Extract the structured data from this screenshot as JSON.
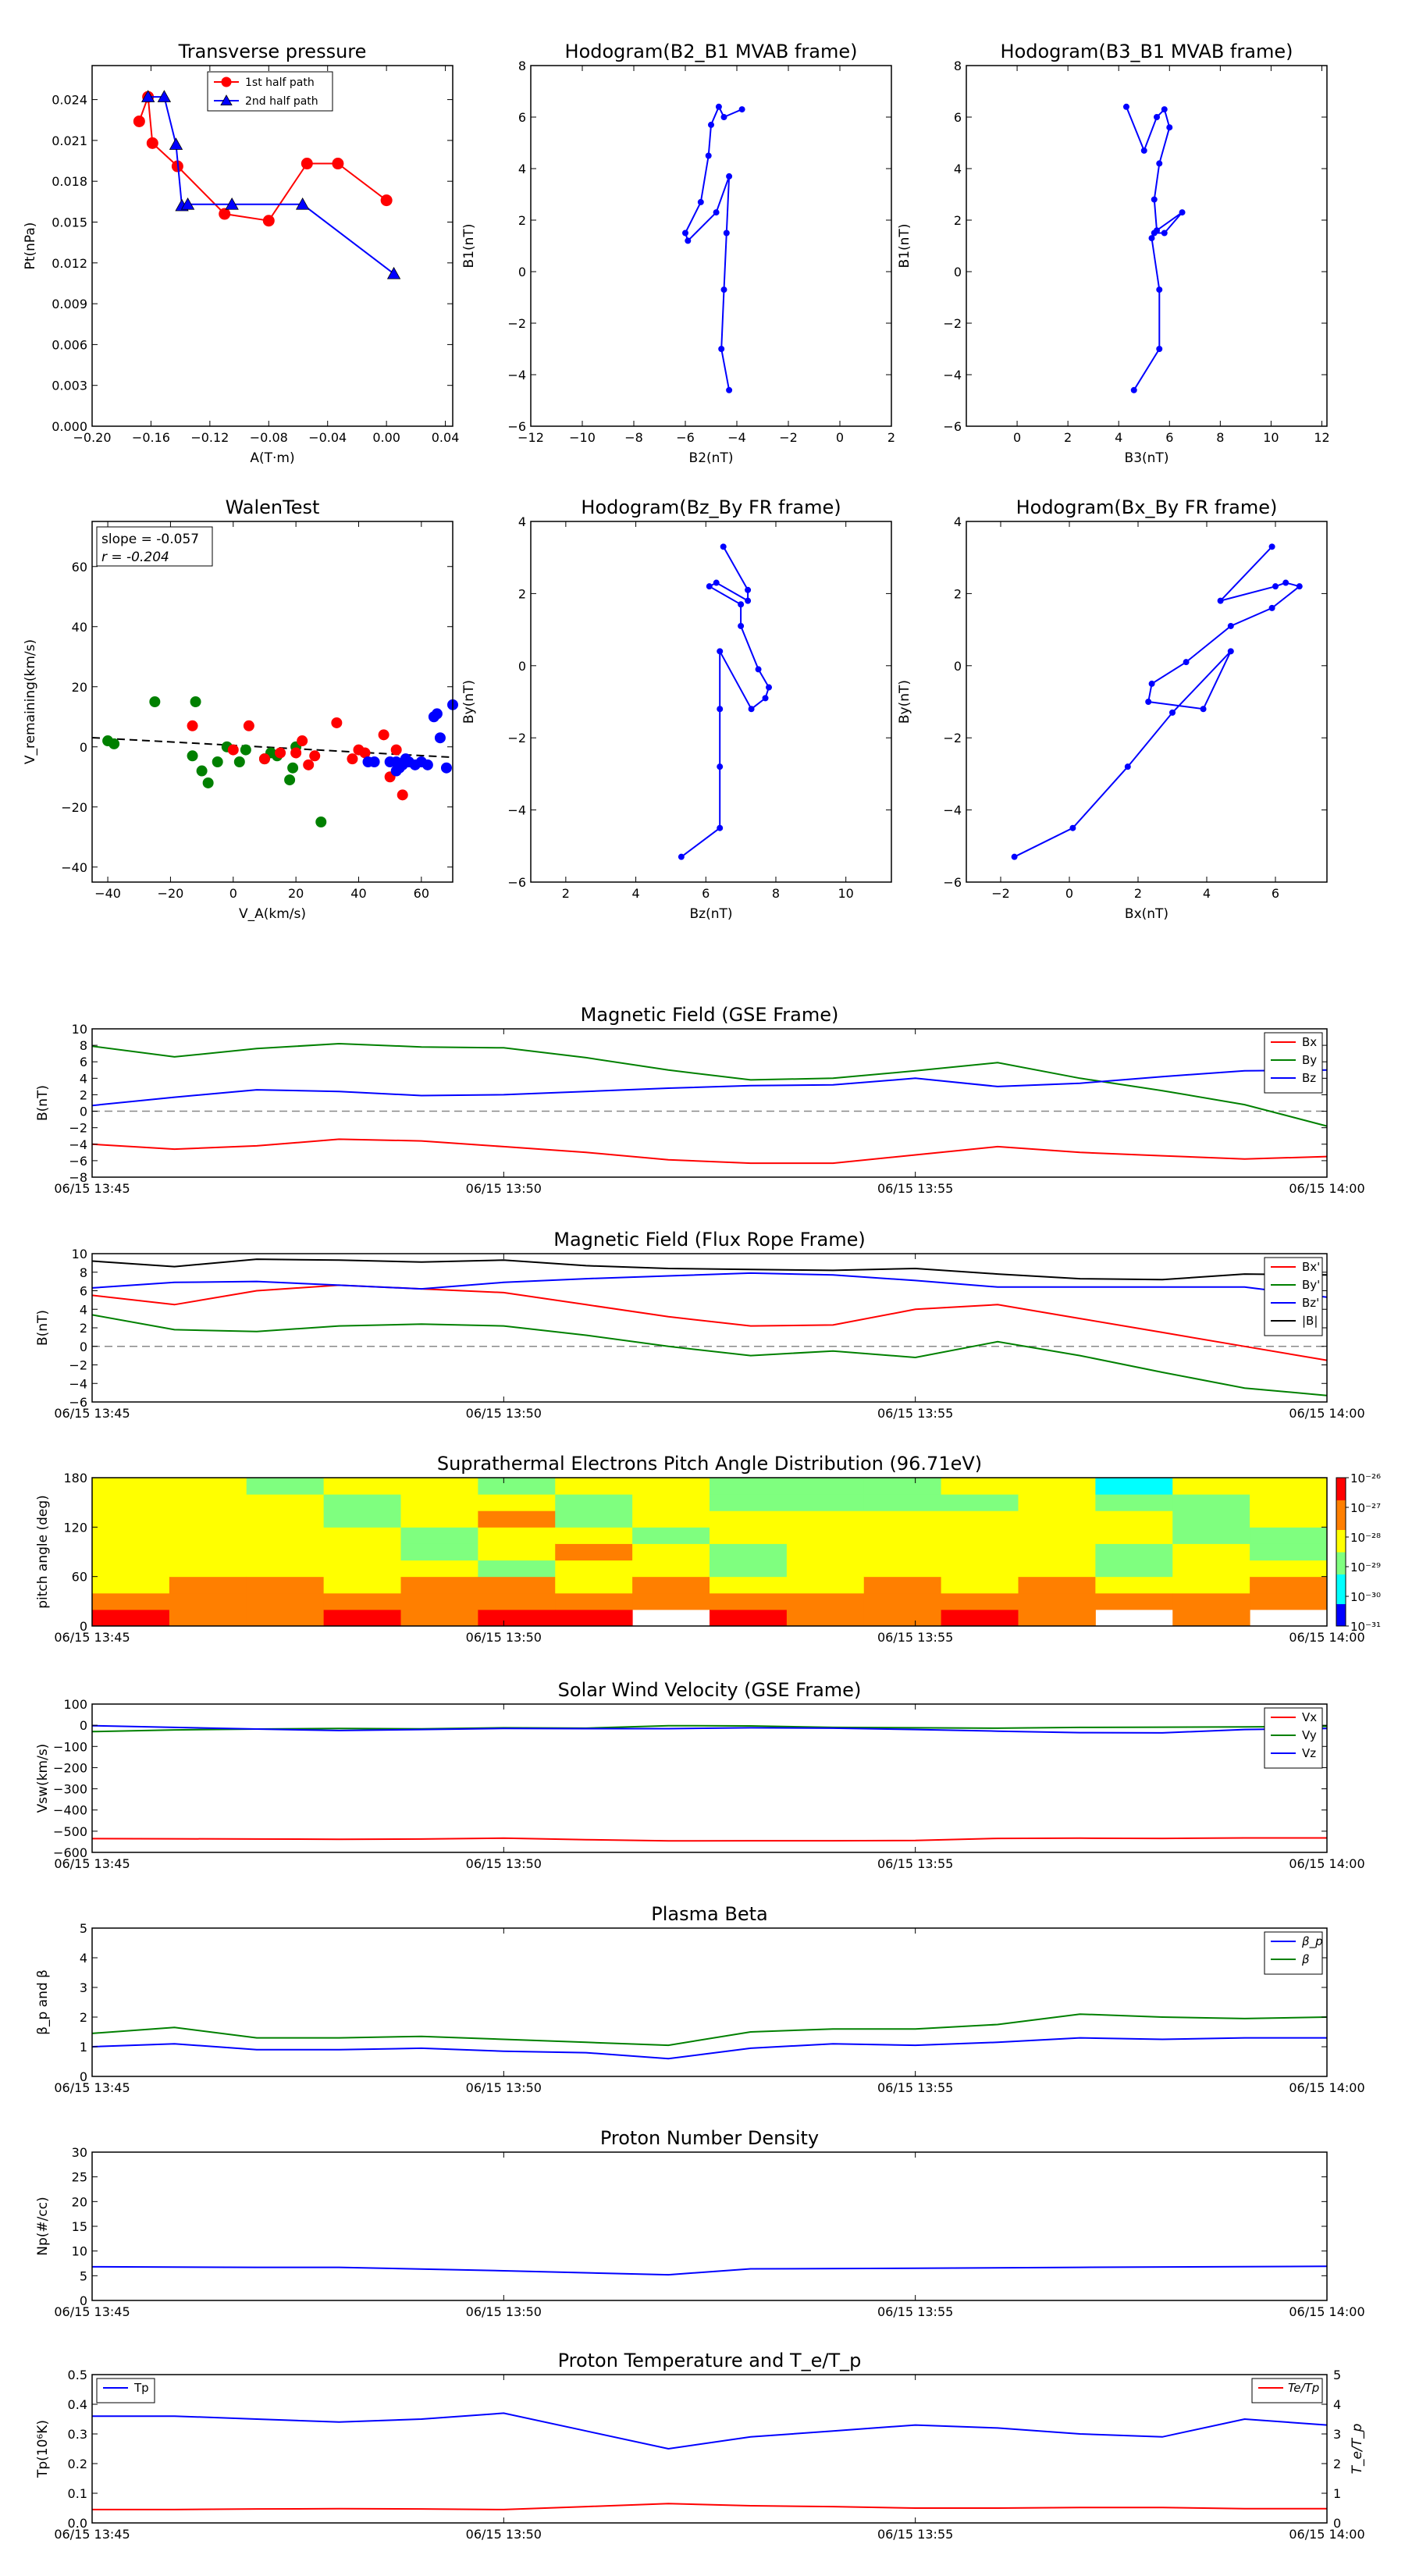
{
  "panels": {
    "pt": {
      "title": "Transverse pressure",
      "xlabel": "A(T·m)",
      "ylabel": "Pt(nPa)",
      "xticks": [
        "−0.20",
        "−0.16",
        "−0.12",
        "−0.08",
        "−0.04",
        "0.00",
        "0.04"
      ],
      "yticks": [
        "0.000",
        "0.003",
        "0.006",
        "0.009",
        "0.012",
        "0.015",
        "0.018",
        "0.021",
        "0.024"
      ],
      "legend": [
        "1st half path",
        "2nd half path"
      ]
    },
    "h1": {
      "title": "Hodogram(B2_B1 MVAB frame)",
      "xlabel": "B2(nT)",
      "ylabel": "B1(nT)",
      "xticks": [
        "−12",
        "−10",
        "−8",
        "−6",
        "−4",
        "−2",
        "0",
        "2"
      ],
      "yticks": [
        "−6",
        "−4",
        "−2",
        "0",
        "2",
        "4",
        "6",
        "8"
      ]
    },
    "h2": {
      "title": "Hodogram(B3_B1 MVAB frame)",
      "xlabel": "B3(nT)",
      "ylabel": "B1(nT)",
      "xticks": [
        "0",
        "2",
        "4",
        "6",
        "8",
        "10",
        "12"
      ],
      "yticks": [
        "−6",
        "−4",
        "−2",
        "0",
        "2",
        "4",
        "6",
        "8"
      ]
    },
    "walen": {
      "title": "WalenTest",
      "xlabel": "V_A(km/s)",
      "ylabel": "V_remaining(km/s)",
      "xticks": [
        "−40",
        "−20",
        "0",
        "20",
        "40",
        "60"
      ],
      "yticks": [
        "−40",
        "−20",
        "0",
        "20",
        "40",
        "60"
      ],
      "slope": "slope = -0.057",
      "r": "r = -0.204"
    },
    "h3": {
      "title": "Hodogram(Bz_By FR frame)",
      "xlabel": "Bz(nT)",
      "ylabel": "By(nT)",
      "xticks": [
        "2",
        "4",
        "6",
        "8",
        "10"
      ],
      "yticks": [
        "−6",
        "−4",
        "−2",
        "0",
        "2",
        "4"
      ]
    },
    "h4": {
      "title": "Hodogram(Bx_By FR frame)",
      "xlabel": "Bx(nT)",
      "ylabel": "By(nT)",
      "xticks": [
        "−2",
        "0",
        "2",
        "4",
        "6"
      ],
      "yticks": [
        "−6",
        "−4",
        "−2",
        "0",
        "2",
        "4"
      ]
    },
    "time_ticks": [
      "06/15 13:45",
      "06/15 13:50",
      "06/15 13:55",
      "06/15 14:00"
    ],
    "mag_gse": {
      "title": "Magnetic Field (GSE Frame)",
      "ylabel": "B(nT)",
      "yticks": [
        "−8",
        "−6",
        "−4",
        "−2",
        "0",
        "2",
        "4",
        "6",
        "8",
        "10"
      ],
      "legend": [
        "Bx",
        "By",
        "Bz"
      ]
    },
    "mag_fr": {
      "title": "Magnetic Field (Flux Rope Frame)",
      "ylabel": "B(nT)",
      "yticks": [
        "−6",
        "−4",
        "−2",
        "0",
        "2",
        "4",
        "6",
        "8",
        "10"
      ],
      "legend": [
        "Bx'",
        "By'",
        "Bz'",
        "|B|"
      ]
    },
    "pad": {
      "title": "Suprathermal Electrons Pitch Angle Distribution (96.71eV)",
      "ylabel": "pitch angle (deg)",
      "yticks": [
        "0",
        "60",
        "120",
        "180"
      ],
      "cbar": [
        "10⁻³¹",
        "10⁻³⁰",
        "10⁻²⁹",
        "10⁻²⁸",
        "10⁻²⁷",
        "10⁻²⁶"
      ]
    },
    "vsw": {
      "title": "Solar Wind Velocity (GSE Frame)",
      "ylabel": "Vsw(km/s)",
      "yticks": [
        "−600",
        "−500",
        "−400",
        "−300",
        "−200",
        "−100",
        "0",
        "100"
      ],
      "legend": [
        "Vx",
        "Vy",
        "Vz"
      ]
    },
    "beta": {
      "title": "Plasma Beta",
      "ylabel": "β_p and β",
      "yticks": [
        "0",
        "1",
        "2",
        "3",
        "4",
        "5"
      ],
      "legend": [
        "β_p",
        "β"
      ]
    },
    "np": {
      "title": "Proton Number Density",
      "ylabel": "Np(#/cc)",
      "yticks": [
        "0",
        "5",
        "10",
        "15",
        "20",
        "25",
        "30"
      ]
    },
    "tp": {
      "title": "Proton Temperature and T_e/T_p",
      "ylabel": "Tp(10⁶K)",
      "ylabel_right": "T_e/T_p",
      "yticks": [
        "0.0",
        "0.1",
        "0.2",
        "0.3",
        "0.4",
        "0.5"
      ],
      "yticks_right": [
        "0",
        "1",
        "2",
        "3",
        "4",
        "5"
      ],
      "legend": [
        "Tp"
      ],
      "legend_right": [
        "Te/Tp"
      ]
    }
  },
  "colors": {
    "red": "#ff0000",
    "green": "#008000",
    "blue": "#0000ff",
    "black": "#000000",
    "gray": "#888888"
  },
  "chart_data": [
    {
      "type": "line",
      "title": "Transverse pressure",
      "xlabel": "A(T·m)",
      "ylabel": "Pt(nPa)",
      "xlim": [
        -0.2,
        0.045
      ],
      "ylim": [
        0,
        0.0265
      ],
      "series": [
        {
          "name": "1st half path",
          "x": [
            -0.168,
            -0.162,
            -0.159,
            -0.142,
            -0.11,
            -0.08,
            -0.054,
            -0.033,
            0.0
          ],
          "y": [
            0.0224,
            0.0242,
            0.0208,
            0.0191,
            0.0156,
            0.0151,
            0.0193,
            0.0193,
            0.0166
          ]
        },
        {
          "name": "2nd half path",
          "x": [
            -0.162,
            -0.151,
            -0.143,
            -0.139,
            -0.135,
            -0.105,
            -0.057,
            0.005
          ],
          "y": [
            0.0242,
            0.0242,
            0.0207,
            0.0162,
            0.0163,
            0.0163,
            0.0163,
            0.0112
          ]
        }
      ]
    },
    {
      "type": "line",
      "title": "Hodogram(B2_B1 MVAB frame)",
      "xlabel": "B2(nT)",
      "ylabel": "B1(nT)",
      "xlim": [
        -12,
        2
      ],
      "ylim": [
        -6,
        8
      ],
      "x": [
        -3.8,
        -4.5,
        -4.7,
        -5.0,
        -5.1,
        -5.4,
        -6.0,
        -5.9,
        -4.8,
        -4.3,
        -4.4,
        -4.5,
        -4.6,
        -4.3
      ],
      "y": [
        6.3,
        6.0,
        6.4,
        5.7,
        4.5,
        2.7,
        1.5,
        1.2,
        2.3,
        3.7,
        1.5,
        -0.7,
        -3.0,
        -4.6
      ]
    },
    {
      "type": "line",
      "title": "Hodogram(B3_B1 MVAB frame)",
      "xlabel": "B3(nT)",
      "ylabel": "B1(nT)",
      "xlim": [
        -2,
        12.2
      ],
      "ylim": [
        -6,
        8
      ],
      "x": [
        4.3,
        5.0,
        5.5,
        5.8,
        6.0,
        5.6,
        5.4,
        5.5,
        6.5,
        5.8,
        5.4,
        5.3,
        5.6,
        5.6,
        4.6
      ],
      "y": [
        6.4,
        4.7,
        6.0,
        6.3,
        5.6,
        4.2,
        2.8,
        1.6,
        2.3,
        1.5,
        1.5,
        1.3,
        -0.7,
        -3.0,
        -4.6
      ]
    },
    {
      "type": "scatter",
      "title": "WalenTest",
      "xlabel": "V_A(km/s)",
      "ylabel": "V_remaining(km/s)",
      "xlim": [
        -45,
        70
      ],
      "ylim": [
        -45,
        75
      ],
      "fit": {
        "slope": -0.057,
        "intercept": 0.5,
        "r": -0.204
      },
      "series": [
        {
          "color": "green",
          "x": [
            -40,
            -38,
            -25,
            -13,
            -12,
            -10,
            -8,
            -5,
            -2,
            2,
            4,
            10,
            12,
            14,
            18,
            19,
            20,
            28
          ],
          "y": [
            2,
            1,
            15,
            -3,
            15,
            -8,
            -12,
            -5,
            0,
            -5,
            -1,
            -4,
            -2,
            -3,
            -11,
            -7,
            0,
            -25
          ]
        },
        {
          "color": "red",
          "x": [
            -13,
            0,
            5,
            10,
            15,
            20,
            22,
            24,
            26,
            33,
            38,
            40,
            42,
            48,
            50,
            52,
            54
          ],
          "y": [
            7,
            -1,
            7,
            -4,
            -2,
            -2,
            2,
            -6,
            -3,
            8,
            -4,
            -1,
            -2,
            4,
            -10,
            -1,
            -16
          ]
        },
        {
          "color": "blue",
          "x": [
            43,
            45,
            50,
            52,
            52,
            53,
            54,
            55,
            56,
            58,
            60,
            62,
            64,
            65,
            66,
            68,
            70
          ],
          "y": [
            -5,
            -5,
            -5,
            -8,
            -5,
            -7,
            -6,
            -4,
            -5,
            -6,
            -5,
            -6,
            10,
            11,
            3,
            -7,
            14
          ]
        }
      ]
    },
    {
      "type": "line",
      "title": "Hodogram(Bz_By FR frame)",
      "xlabel": "Bz(nT)",
      "ylabel": "By(nT)",
      "xlim": [
        1,
        11.3
      ],
      "ylim": [
        -6,
        4
      ],
      "x": [
        6.5,
        7.2,
        7.2,
        6.3,
        6.1,
        7.0,
        7.0,
        7.5,
        7.8,
        7.7,
        7.3,
        6.4,
        6.4,
        6.4,
        6.4,
        5.3
      ],
      "y": [
        3.3,
        2.1,
        1.8,
        2.3,
        2.2,
        1.7,
        1.1,
        -0.1,
        -0.6,
        -0.9,
        -1.2,
        0.4,
        -1.2,
        -2.8,
        -4.5,
        -5.3
      ]
    },
    {
      "type": "line",
      "title": "Hodogram(Bx_By FR frame)",
      "xlabel": "Bx(nT)",
      "ylabel": "By(nT)",
      "xlim": [
        -3,
        7.5
      ],
      "ylim": [
        -6,
        4
      ],
      "x": [
        5.9,
        4.4,
        6.0,
        6.3,
        6.7,
        5.9,
        4.7,
        3.4,
        2.4,
        2.3,
        3.9,
        4.7,
        3.0,
        1.7,
        0.1,
        -1.6
      ],
      "y": [
        3.3,
        1.8,
        2.2,
        2.3,
        2.2,
        1.6,
        1.1,
        0.1,
        -0.5,
        -1.0,
        -1.2,
        0.4,
        -1.3,
        -2.8,
        -4.5,
        -5.3
      ]
    },
    {
      "type": "line",
      "title": "Magnetic Field (GSE Frame)",
      "ylabel": "B(nT)",
      "ylim": [
        -8,
        10
      ],
      "t_minutes": [
        0,
        1,
        2,
        3,
        4,
        5,
        6,
        7,
        8,
        9,
        10,
        11,
        12,
        13,
        14,
        15
      ],
      "series": [
        {
          "name": "Bx",
          "color": "red",
          "values": [
            -4,
            -4.6,
            -4.2,
            -3.4,
            -3.6,
            -4.3,
            -5.0,
            -5.9,
            -6.3,
            -6.3,
            -5.3,
            -4.3,
            -5.0,
            -5.4,
            -5.8,
            -5.5
          ]
        },
        {
          "name": "By",
          "color": "green",
          "values": [
            7.9,
            6.6,
            7.6,
            8.2,
            7.8,
            7.7,
            6.5,
            5.0,
            3.8,
            4.0,
            4.9,
            5.9,
            4.0,
            2.5,
            0.8,
            -1.8
          ]
        },
        {
          "name": "Bz",
          "color": "blue",
          "values": [
            0.7,
            1.7,
            2.6,
            2.4,
            1.9,
            2.0,
            2.4,
            2.8,
            3.1,
            3.2,
            4.0,
            3.0,
            3.4,
            4.2,
            4.9,
            5.0
          ]
        }
      ]
    },
    {
      "type": "line",
      "title": "Magnetic Field (Flux Rope Frame)",
      "ylabel": "B(nT)",
      "ylim": [
        -6,
        10
      ],
      "t_minutes": [
        0,
        1,
        2,
        3,
        4,
        5,
        6,
        7,
        8,
        9,
        10,
        11,
        12,
        13,
        14,
        15
      ],
      "series": [
        {
          "name": "Bx'",
          "color": "red",
          "values": [
            5.5,
            4.5,
            6.0,
            6.6,
            6.2,
            5.8,
            4.5,
            3.2,
            2.2,
            2.3,
            4.0,
            4.5,
            3.0,
            1.5,
            0.0,
            -1.5
          ]
        },
        {
          "name": "By'",
          "color": "green",
          "values": [
            3.4,
            1.8,
            1.6,
            2.2,
            2.4,
            2.2,
            1.2,
            0.0,
            -1.0,
            -0.5,
            -1.2,
            0.5,
            -1.0,
            -2.8,
            -4.5,
            -5.3
          ]
        },
        {
          "name": "Bz'",
          "color": "blue",
          "values": [
            6.3,
            6.9,
            7.0,
            6.6,
            6.2,
            6.9,
            7.3,
            7.6,
            7.9,
            7.7,
            7.1,
            6.4,
            6.4,
            6.4,
            6.4,
            5.3
          ]
        },
        {
          "name": "|B|",
          "color": "black",
          "values": [
            9.2,
            8.6,
            9.4,
            9.3,
            9.1,
            9.3,
            8.7,
            8.4,
            8.3,
            8.2,
            8.4,
            7.8,
            7.3,
            7.2,
            7.8,
            7.7
          ]
        }
      ]
    },
    {
      "type": "heatmap",
      "title": "Suprathermal Electrons Pitch Angle Distribution (96.71eV)",
      "ylabel": "pitch angle (deg)",
      "ylim": [
        0,
        180
      ],
      "colorbar": {
        "min_exp": -31,
        "max_exp": -26,
        "scale": "log"
      },
      "t_minutes": [
        0,
        1,
        2,
        3,
        4,
        5,
        6,
        7,
        8,
        9,
        10,
        11,
        12,
        13,
        14,
        15
      ],
      "pitch_bins": [
        0,
        20,
        40,
        60,
        80,
        100,
        120,
        140,
        160,
        180
      ]
    },
    {
      "type": "line",
      "title": "Solar Wind Velocity (GSE Frame)",
      "ylabel": "Vsw(km/s)",
      "ylim": [
        -600,
        100
      ],
      "t_minutes": [
        0,
        1,
        2,
        3,
        4,
        5,
        6,
        7,
        8,
        9,
        10,
        11,
        12,
        13,
        14,
        15
      ],
      "series": [
        {
          "name": "Vx",
          "color": "red",
          "values": [
            -535,
            -536,
            -537,
            -538,
            -537,
            -533,
            -540,
            -546,
            -545,
            -545,
            -544,
            -534,
            -533,
            -534,
            -532,
            -532
          ]
        },
        {
          "name": "Vy",
          "color": "green",
          "values": [
            -30,
            -22,
            -18,
            -15,
            -17,
            -12,
            -14,
            -2,
            -3,
            -10,
            -12,
            -14,
            -10,
            -9,
            -8,
            -5
          ]
        },
        {
          "name": "Vz",
          "color": "blue",
          "values": [
            -2,
            -10,
            -18,
            -25,
            -20,
            -15,
            -16,
            -16,
            -12,
            -14,
            -20,
            -28,
            -35,
            -36,
            -20,
            -15
          ]
        }
      ]
    },
    {
      "type": "line",
      "title": "Plasma Beta",
      "ylabel": "β_p and β",
      "ylim": [
        0,
        5
      ],
      "t_minutes": [
        0,
        1,
        2,
        3,
        4,
        5,
        6,
        7,
        8,
        9,
        10,
        11,
        12,
        13,
        14,
        15
      ],
      "series": [
        {
          "name": "β_p",
          "color": "blue",
          "values": [
            1.0,
            1.1,
            0.9,
            0.9,
            0.95,
            0.85,
            0.8,
            0.6,
            0.95,
            1.1,
            1.05,
            1.15,
            1.3,
            1.25,
            1.3,
            1.3
          ]
        },
        {
          "name": "β",
          "color": "green",
          "values": [
            1.45,
            1.65,
            1.3,
            1.3,
            1.35,
            1.25,
            1.15,
            1.05,
            1.5,
            1.6,
            1.6,
            1.75,
            2.1,
            2.0,
            1.95,
            2.0
          ]
        }
      ]
    },
    {
      "type": "line",
      "title": "Proton Number Density",
      "ylabel": "Np(#/cc)",
      "ylim": [
        0,
        30
      ],
      "t_minutes": [
        0,
        2,
        3,
        5,
        7,
        8,
        10,
        12,
        15
      ],
      "series": [
        {
          "color": "blue",
          "values": [
            6.8,
            6.7,
            6.7,
            6.0,
            5.2,
            6.4,
            6.5,
            6.7,
            6.9
          ]
        }
      ]
    },
    {
      "type": "line",
      "title": "Proton Temperature and T_e/T_p",
      "ylabel": "Tp(10⁶K)",
      "ylim": [
        0,
        0.5
      ],
      "y2label": "T_e/T_p",
      "y2lim": [
        0,
        5
      ],
      "t_minutes": [
        0,
        1,
        2,
        3,
        4,
        5,
        6,
        7,
        8,
        9,
        10,
        11,
        12,
        13,
        14,
        15
      ],
      "series": [
        {
          "name": "Tp",
          "axis": "left",
          "color": "blue",
          "values": [
            0.36,
            0.36,
            0.35,
            0.34,
            0.35,
            0.37,
            0.31,
            0.25,
            0.29,
            0.31,
            0.33,
            0.32,
            0.3,
            0.29,
            0.35,
            0.33
          ]
        },
        {
          "name": "Te/Tp",
          "axis": "right",
          "color": "red",
          "values": [
            0.45,
            0.45,
            0.47,
            0.48,
            0.47,
            0.45,
            0.55,
            0.65,
            0.58,
            0.55,
            0.5,
            0.5,
            0.52,
            0.52,
            0.48,
            0.48
          ]
        }
      ]
    }
  ]
}
